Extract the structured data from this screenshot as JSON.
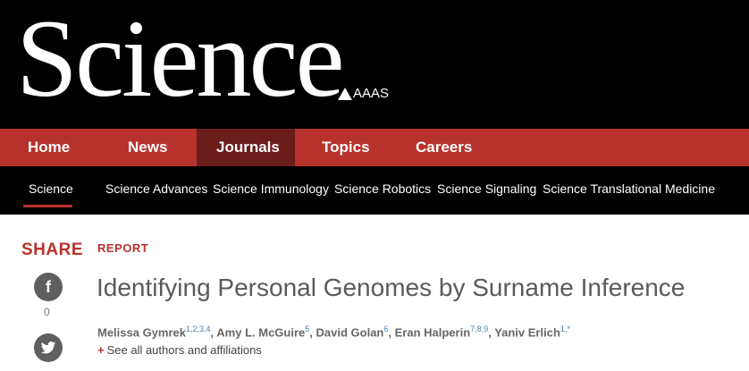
{
  "brand": {
    "logo": "Science",
    "publisher": "AAAS"
  },
  "main_nav": [
    {
      "label": "Home"
    },
    {
      "label": "News"
    },
    {
      "label": "Journals"
    },
    {
      "label": "Topics"
    },
    {
      "label": "Careers"
    }
  ],
  "sub_nav": [
    {
      "label": "Science"
    },
    {
      "label": "Science Advances"
    },
    {
      "label": "Science Immunology"
    },
    {
      "label": "Science Robotics"
    },
    {
      "label": "Science Signaling"
    },
    {
      "label": "Science Translational Medicine"
    }
  ],
  "share": {
    "label": "SHARE",
    "facebook_count": "0"
  },
  "article": {
    "type": "REPORT",
    "title": "Identifying Personal Genomes by Surname Inference",
    "authors": [
      {
        "name": "Melissa Gymrek",
        "affil": "1,2,3,4"
      },
      {
        "name": "Amy L. McGuire",
        "affil": "5"
      },
      {
        "name": "David Golan",
        "affil": "6"
      },
      {
        "name": "Eran Halperin",
        "affil": "7,8,9"
      },
      {
        "name": "Yaniv Erlich",
        "affil": "1,*"
      }
    ],
    "see_all": "See all authors and affiliations"
  },
  "colors": {
    "accent": "#b8322d",
    "active_nav": "#6b1d1a",
    "masthead": "#000000"
  },
  "icons": [
    "facebook-icon",
    "twitter-icon",
    "aaas-logo-icon"
  ]
}
